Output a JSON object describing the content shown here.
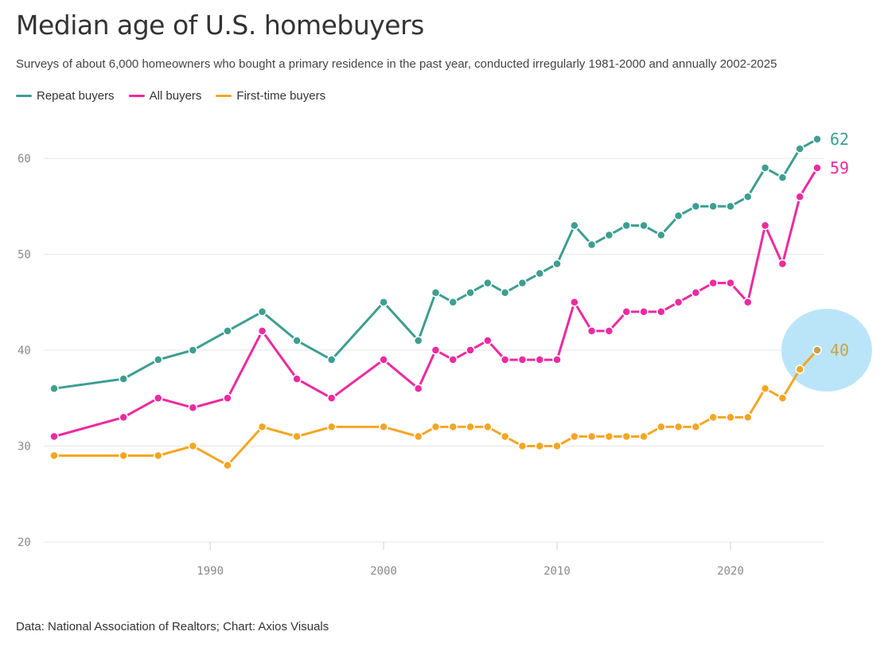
{
  "title": "Median age of U.S. homebuyers",
  "subtitle": "Surveys of about 6,000 homeowners who bought a primary residence in the past year, conducted irregularly 1981-2000 and annually 2002-2025",
  "footer": "Data: National Association of Realtors; Chart: Axios Visuals",
  "chart_data": {
    "type": "line",
    "x_ticks": [
      1990,
      2000,
      2010,
      2020
    ],
    "y_ticks": [
      20,
      30,
      40,
      50,
      60
    ],
    "xlim": [
      1981,
      2025
    ],
    "ylim": [
      20,
      62
    ],
    "grid": true,
    "legend_position": "top-left",
    "x": [
      1981,
      1985,
      1987,
      1989,
      1991,
      1993,
      1995,
      1997,
      2000,
      2002,
      2003,
      2004,
      2005,
      2006,
      2007,
      2008,
      2009,
      2010,
      2011,
      2012,
      2013,
      2014,
      2015,
      2016,
      2017,
      2018,
      2019,
      2020,
      2021,
      2022,
      2023,
      2024,
      2025
    ],
    "series": [
      {
        "name": "Repeat buyers",
        "color": "#3d9e91",
        "end_label": "62",
        "values": [
          36,
          37,
          39,
          40,
          42,
          44,
          41,
          39,
          45,
          41,
          46,
          45,
          46,
          47,
          46,
          47,
          48,
          49,
          53,
          51,
          52,
          53,
          53,
          52,
          54,
          55,
          55,
          55,
          56,
          59,
          58,
          61,
          62
        ]
      },
      {
        "name": "All buyers",
        "color": "#ec2aa0",
        "end_label": "59",
        "values": [
          31,
          33,
          35,
          34,
          35,
          42,
          37,
          35,
          39,
          36,
          40,
          39,
          40,
          41,
          39,
          39,
          39,
          39,
          45,
          42,
          42,
          44,
          44,
          44,
          45,
          46,
          47,
          47,
          45,
          53,
          49,
          56,
          59
        ]
      },
      {
        "name": "First-time buyers",
        "color": "#f4a622",
        "end_label": "40",
        "values": [
          29,
          29,
          29,
          30,
          28,
          32,
          31,
          32,
          32,
          31,
          32,
          32,
          32,
          32,
          31,
          30,
          30,
          30,
          31,
          31,
          31,
          31,
          31,
          32,
          32,
          32,
          33,
          33,
          33,
          36,
          35,
          38,
          40
        ]
      }
    ],
    "highlight": {
      "x": 2025,
      "y": 40,
      "color": "#b3e2f8"
    }
  }
}
